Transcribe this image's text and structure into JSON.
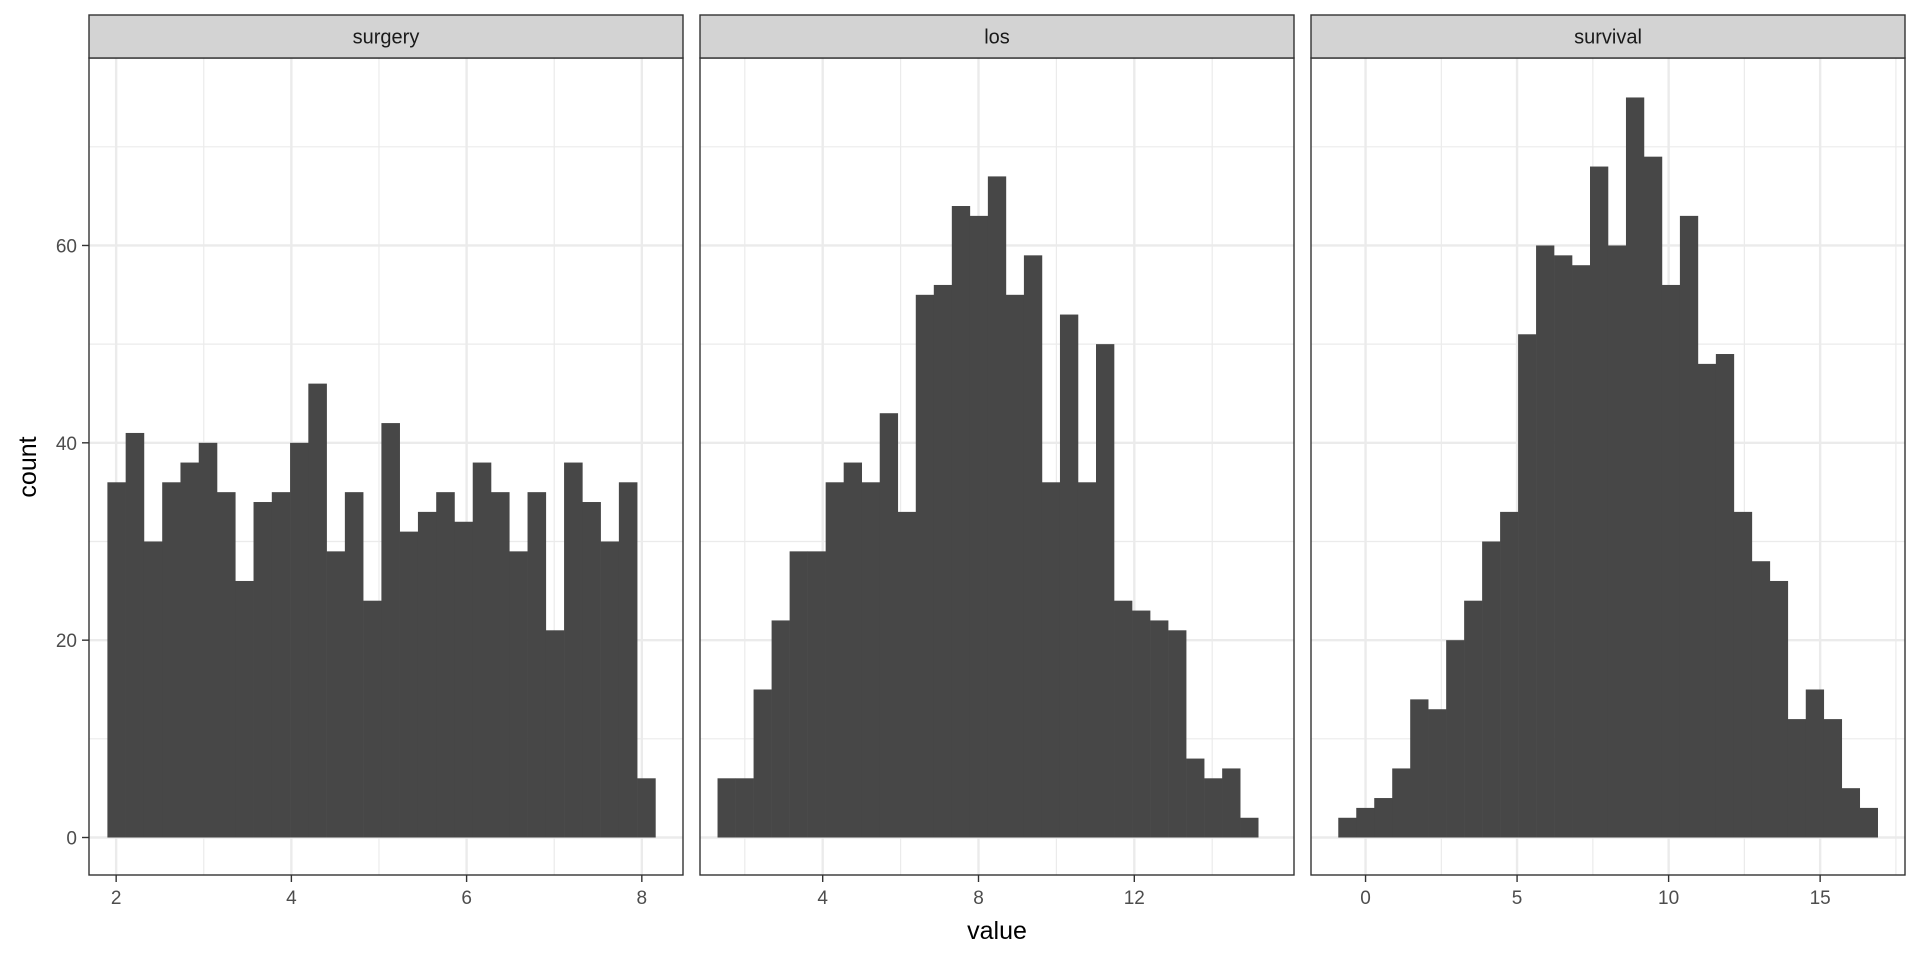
{
  "chart_data": {
    "type": "bar",
    "subtype": "faceted-histogram",
    "xlabel": "value",
    "ylabel": "count",
    "ylim": [
      -3.8,
      79
    ],
    "yticks": [
      0,
      20,
      40,
      60
    ],
    "grid": true,
    "colors": {
      "bar": "#474747",
      "strip": "#d3d3d3",
      "grid": "#ebebeb",
      "frame": "#333333",
      "text": "#4d4d4d"
    },
    "panels": [
      {
        "name": "surgery",
        "xlim": [
          1.69,
          8.47
        ],
        "xticks": [
          2,
          4,
          6,
          8
        ],
        "bin_start": 1.9,
        "bin_width": 0.2085,
        "counts": [
          36,
          41,
          30,
          36,
          38,
          40,
          35,
          26,
          34,
          35,
          40,
          46,
          29,
          35,
          24,
          42,
          31,
          33,
          35,
          32,
          38,
          35,
          29,
          35,
          21,
          38,
          34,
          30,
          36,
          6
        ]
      },
      {
        "name": "los",
        "xlim": [
          0.85,
          16.1
        ],
        "xticks": [
          4,
          8,
          12
        ],
        "bin_start": 1.3,
        "bin_width": 0.4627,
        "counts": [
          6,
          6,
          15,
          22,
          29,
          29,
          36,
          38,
          36,
          43,
          33,
          55,
          56,
          64,
          63,
          67,
          55,
          59,
          36,
          53,
          36,
          50,
          24,
          23,
          22,
          21,
          8,
          6,
          7,
          2
        ]
      },
      {
        "name": "survival",
        "xlim": [
          -1.8,
          17.8
        ],
        "xticks": [
          0,
          5,
          10,
          15
        ],
        "bin_start": -0.9,
        "bin_width": 0.5933,
        "counts": [
          2,
          3,
          4,
          7,
          14,
          13,
          20,
          24,
          30,
          33,
          51,
          60,
          59,
          58,
          68,
          60,
          75,
          69,
          56,
          63,
          48,
          49,
          33,
          28,
          26,
          12,
          15,
          12,
          5,
          3
        ]
      }
    ]
  }
}
